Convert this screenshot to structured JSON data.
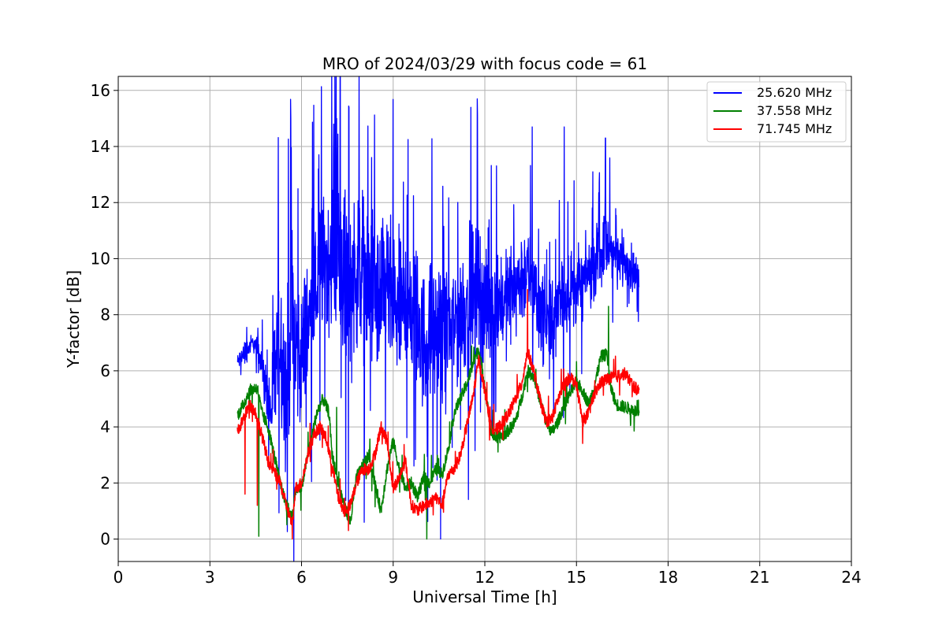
{
  "chart_data": {
    "type": "line",
    "title": "MRO of 2024/03/29 with focus code = 61",
    "xlabel": "Universal Time [h]",
    "ylabel": "Y-factor [dB]",
    "xlim": [
      0,
      24
    ],
    "ylim": [
      -0.8,
      16.5
    ],
    "xticks": [
      0,
      3,
      6,
      9,
      12,
      15,
      18,
      21,
      24
    ],
    "yticks": [
      0,
      2,
      4,
      6,
      8,
      10,
      12,
      14,
      16
    ],
    "grid": true,
    "legend_position": "top-right",
    "series": [
      {
        "name": "25.620 MHz",
        "color": "#0000ff",
        "mode": "noisy",
        "x": [
          3.9,
          4.1,
          4.4,
          4.6,
          4.8,
          5.0,
          5.15,
          5.3,
          5.5,
          5.65,
          5.8,
          6.0,
          6.3,
          6.6,
          6.9,
          7.1,
          7.3,
          7.6,
          7.9,
          8.2,
          8.5,
          8.8,
          9.1,
          9.4,
          9.7,
          10.0,
          10.3,
          10.6,
          10.9,
          11.2,
          11.5,
          11.8,
          12.1,
          12.4,
          12.7,
          13.0,
          13.3,
          13.6,
          13.9,
          14.2,
          14.5,
          14.8,
          15.1,
          15.4,
          15.7,
          16.0,
          16.3,
          16.6,
          16.9,
          17.05
        ],
        "y": [
          6.3,
          6.6,
          7.0,
          6.8,
          5.5,
          4.5,
          6.0,
          7.5,
          5.0,
          8.0,
          7.0,
          6.5,
          8.0,
          9.5,
          10.0,
          11.0,
          10.0,
          9.0,
          10.0,
          9.0,
          8.5,
          9.0,
          8.0,
          8.5,
          8.0,
          7.0,
          7.5,
          7.0,
          7.5,
          8.0,
          8.5,
          9.0,
          8.0,
          8.5,
          8.5,
          9.0,
          9.5,
          9.0,
          8.0,
          7.5,
          8.5,
          9.0,
          9.0,
          9.5,
          10.0,
          10.5,
          10.0,
          10.0,
          9.5,
          9.2
        ],
        "amp": [
          0.25,
          0.4,
          0.3,
          0.3,
          0.8,
          1.3,
          3.0,
          2.5,
          2.5,
          3.0,
          2.8,
          2.5,
          2.2,
          2.2,
          2.5,
          2.8,
          3.0,
          2.8,
          2.6,
          2.6,
          2.5,
          2.4,
          2.4,
          2.4,
          2.4,
          2.3,
          2.2,
          2.2,
          2.1,
          2.2,
          2.2,
          2.1,
          1.8,
          1.7,
          1.6,
          1.6,
          1.6,
          1.5,
          1.5,
          1.5,
          1.4,
          1.3,
          1.2,
          1.1,
          1.1,
          1.1,
          0.9,
          0.8,
          0.7,
          0.5
        ],
        "spikes": [
          {
            "x": 5.65,
            "y": 15.0
          },
          {
            "x": 6.55,
            "y": 13.2
          },
          {
            "x": 7.05,
            "y": 14.8
          },
          {
            "x": 7.15,
            "y": 15.0
          },
          {
            "x": 7.55,
            "y": 15.4
          },
          {
            "x": 11.75,
            "y": 15.7
          },
          {
            "x": 13.55,
            "y": 14.7
          },
          {
            "x": 14.6,
            "y": 14.7
          },
          {
            "x": 15.95,
            "y": 14.3
          },
          {
            "x": 10.55,
            "y": 0.0
          },
          {
            "x": 8.05,
            "y": 0.6
          }
        ]
      },
      {
        "name": "37.558 MHz",
        "color": "#008000",
        "mode": "smooth",
        "x": [
          3.9,
          4.1,
          4.3,
          4.55,
          4.7,
          4.9,
          5.1,
          5.3,
          5.5,
          5.7,
          5.8,
          6.0,
          6.2,
          6.5,
          6.7,
          6.9,
          7.0,
          7.2,
          7.4,
          7.6,
          7.8,
          8.0,
          8.2,
          8.4,
          8.6,
          8.8,
          9.0,
          9.2,
          9.4,
          9.6,
          9.8,
          10.0,
          10.2,
          10.4,
          10.6,
          10.8,
          11.0,
          11.2,
          11.4,
          11.6,
          11.8,
          12.0,
          12.2,
          12.4,
          12.6,
          12.8,
          13.0,
          13.2,
          13.4,
          13.6,
          13.8,
          14.0,
          14.2,
          14.4,
          14.6,
          14.8,
          15.0,
          15.2,
          15.4,
          15.6,
          15.8,
          16.0,
          16.1,
          16.3,
          16.6,
          16.9,
          17.05
        ],
        "y": [
          4.4,
          4.8,
          5.3,
          5.4,
          4.5,
          4.0,
          3.0,
          2.0,
          1.2,
          0.8,
          1.8,
          1.8,
          3.0,
          4.5,
          5.0,
          4.5,
          3.0,
          2.0,
          1.2,
          0.6,
          2.2,
          2.6,
          3.0,
          2.0,
          1.0,
          2.5,
          3.5,
          2.5,
          1.8,
          2.0,
          1.5,
          2.2,
          2.0,
          2.5,
          2.3,
          3.2,
          4.5,
          5.0,
          5.5,
          6.2,
          6.8,
          5.5,
          3.8,
          3.6,
          3.7,
          3.9,
          4.2,
          5.0,
          6.0,
          5.8,
          5.0,
          4.2,
          3.8,
          4.2,
          4.8,
          5.2,
          5.6,
          5.3,
          4.8,
          5.5,
          6.5,
          6.6,
          5.5,
          4.8,
          4.7,
          4.6,
          4.4
        ],
        "amp": 0.22,
        "spikes": [
          {
            "x": 4.6,
            "y": 0.1
          },
          {
            "x": 16.05,
            "y": 8.3
          },
          {
            "x": 10.1,
            "y": 0.0
          },
          {
            "x": 7.15,
            "y": 4.7
          }
        ]
      },
      {
        "name": "71.745 MHz",
        "color": "#ff0000",
        "mode": "smooth",
        "x": [
          3.9,
          4.1,
          4.3,
          4.5,
          4.7,
          4.9,
          5.1,
          5.3,
          5.5,
          5.7,
          5.8,
          6.0,
          6.2,
          6.4,
          6.6,
          6.8,
          7.0,
          7.2,
          7.4,
          7.6,
          7.8,
          8.0,
          8.2,
          8.4,
          8.6,
          8.8,
          9.0,
          9.2,
          9.4,
          9.6,
          9.8,
          10.0,
          10.2,
          10.4,
          10.6,
          10.8,
          11.0,
          11.2,
          11.4,
          11.6,
          11.8,
          12.0,
          12.2,
          12.4,
          12.6,
          12.8,
          13.0,
          13.2,
          13.4,
          13.6,
          13.8,
          14.0,
          14.2,
          14.4,
          14.6,
          14.8,
          15.0,
          15.2,
          15.4,
          15.6,
          15.8,
          16.0,
          16.3,
          16.6,
          16.9,
          17.05
        ],
        "y": [
          3.8,
          4.3,
          4.8,
          4.5,
          3.7,
          2.8,
          2.4,
          2.0,
          1.2,
          0.5,
          1.8,
          2.0,
          3.0,
          3.7,
          4.0,
          3.6,
          2.6,
          1.5,
          1.0,
          1.2,
          2.0,
          2.5,
          2.5,
          3.0,
          4.0,
          3.5,
          1.8,
          2.2,
          2.8,
          1.2,
          1.0,
          1.2,
          1.3,
          1.5,
          1.2,
          2.3,
          2.5,
          3.0,
          4.0,
          5.0,
          6.4,
          5.3,
          4.0,
          3.9,
          4.2,
          4.5,
          5.0,
          5.5,
          6.7,
          6.0,
          5.0,
          4.2,
          4.3,
          5.0,
          5.5,
          5.8,
          5.5,
          4.2,
          4.5,
          5.2,
          5.6,
          5.7,
          5.8,
          5.9,
          5.4,
          5.3
        ],
        "amp": 0.22,
        "spikes": [
          {
            "x": 4.15,
            "y": 1.6
          },
          {
            "x": 4.55,
            "y": 1.2
          },
          {
            "x": 13.4,
            "y": 8.9
          },
          {
            "x": 5.7,
            "y": 0.0
          }
        ]
      }
    ]
  }
}
